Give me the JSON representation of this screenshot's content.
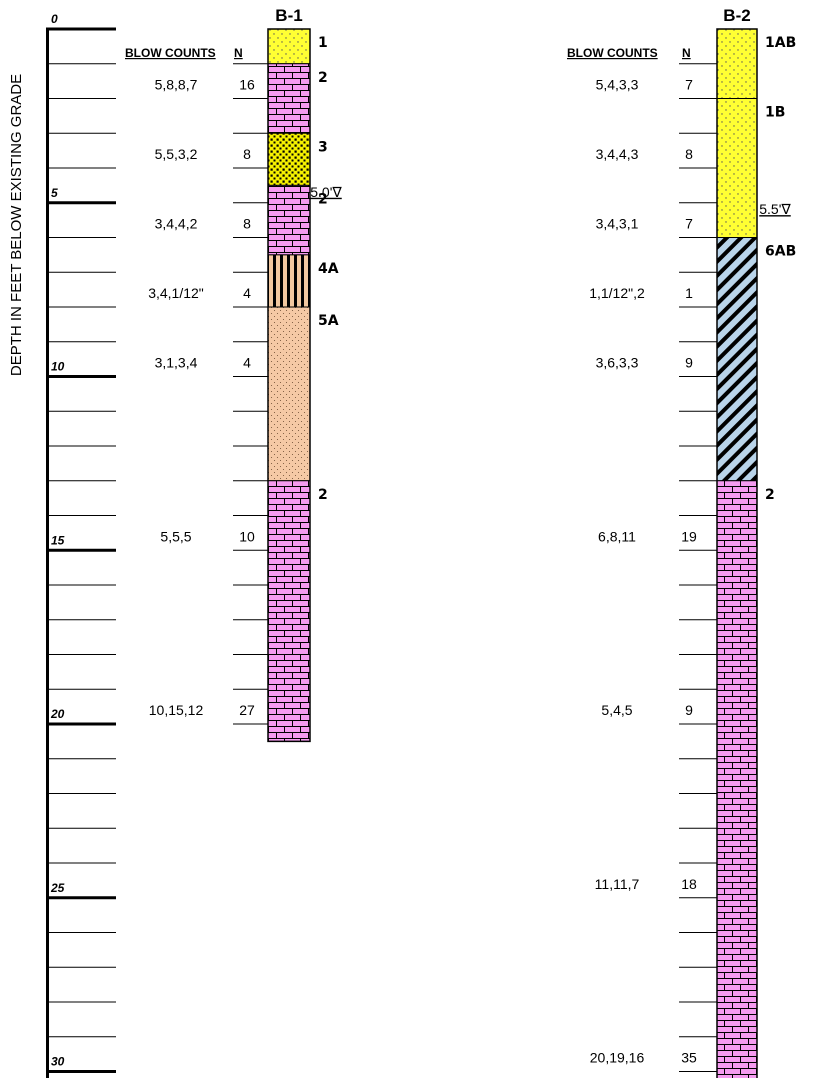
{
  "axis_title": "DEPTH IN FEET BELOW EXISTING GRADE",
  "depth_scale": {
    "min": 0,
    "max": 30,
    "major_labels": [
      "0",
      "5",
      "10",
      "15",
      "20",
      "25",
      "30"
    ]
  },
  "column_headers": {
    "blow_counts": "BLOW COUNTS",
    "n": "N"
  },
  "boreholes": [
    {
      "name": "B-1",
      "water_level_label": "5.0'∇",
      "water_level_depth": 5.0,
      "bottom_depth": 20.5,
      "layers": [
        {
          "label": "1",
          "top": 0,
          "bottom": 1,
          "pattern": "dots-yellow"
        },
        {
          "label": "2",
          "top": 1,
          "bottom": 3,
          "pattern": "brick-pink"
        },
        {
          "label": "3",
          "top": 3,
          "bottom": 4.5,
          "pattern": "dense-dots-yellow"
        },
        {
          "label": "2",
          "top": 4.5,
          "bottom": 6.5,
          "pattern": "brick-pink"
        },
        {
          "label": "4A",
          "top": 6.5,
          "bottom": 8,
          "pattern": "vertical-stripes-tan"
        },
        {
          "label": "5A",
          "top": 8,
          "bottom": 13,
          "pattern": "dots-peach"
        },
        {
          "label": "2",
          "top": 13,
          "bottom": 20.5,
          "pattern": "brick-pink"
        }
      ],
      "samples": [
        {
          "depth": 2,
          "blow_counts": "5,8,8,7",
          "n": "16"
        },
        {
          "depth": 4,
          "blow_counts": "5,5,3,2",
          "n": "8"
        },
        {
          "depth": 6,
          "blow_counts": "3,4,4,2",
          "n": "8"
        },
        {
          "depth": 8,
          "blow_counts": "3,4,1/12\"",
          "n": "4"
        },
        {
          "depth": 10,
          "blow_counts": "3,1,3,4",
          "n": "4"
        },
        {
          "depth": 15,
          "blow_counts": "5,5,5",
          "n": "10"
        },
        {
          "depth": 20,
          "blow_counts": "10,15,12",
          "n": "27"
        }
      ]
    },
    {
      "name": "B-2",
      "water_level_label": "5.5'∇",
      "water_level_depth": 5.5,
      "bottom_depth": 30.5,
      "layers": [
        {
          "label": "1AB",
          "top": 0,
          "bottom": 2,
          "pattern": "dots-yellow"
        },
        {
          "label": "1B",
          "top": 2,
          "bottom": 6,
          "pattern": "dots-yellow"
        },
        {
          "label": "6AB",
          "top": 6,
          "bottom": 13,
          "pattern": "diagonal-blue"
        },
        {
          "label": "2",
          "top": 13,
          "bottom": 30.5,
          "pattern": "brick-pink"
        }
      ],
      "samples": [
        {
          "depth": 2,
          "blow_counts": "5,4,3,3",
          "n": "7"
        },
        {
          "depth": 4,
          "blow_counts": "3,4,4,3",
          "n": "8"
        },
        {
          "depth": 6,
          "blow_counts": "3,4,3,1",
          "n": "7"
        },
        {
          "depth": 8,
          "blow_counts": "1,1/12\",2",
          "n": "1"
        },
        {
          "depth": 10,
          "blow_counts": "3,6,3,3",
          "n": "9"
        },
        {
          "depth": 15,
          "blow_counts": "6,8,11",
          "n": "19"
        },
        {
          "depth": 20,
          "blow_counts": "5,4,5",
          "n": "9"
        },
        {
          "depth": 25,
          "blow_counts": "11,11,7",
          "n": "18"
        },
        {
          "depth": 30,
          "blow_counts": "20,19,16",
          "n": "35"
        }
      ]
    }
  ],
  "colors": {
    "dots-yellow": "#ffff33",
    "dense-dots-yellow": "#f5f000",
    "brick-pink": "#f59bf0",
    "vertical-stripes-tan": "#f2c8a0",
    "dots-peach": "#f5c9a5",
    "diagonal-blue": "#b9d4ea"
  }
}
